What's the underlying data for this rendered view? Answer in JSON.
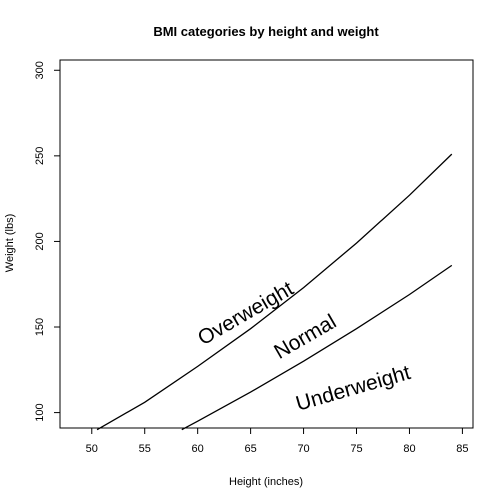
{
  "chart_data": {
    "type": "line",
    "title": "BMI categories by height and weight",
    "xlabel": "Height (inches)",
    "ylabel": "Weight (lbs)",
    "xlim": [
      47,
      86
    ],
    "ylim": [
      91,
      306
    ],
    "xticks": [
      50,
      55,
      60,
      65,
      70,
      75,
      80,
      85
    ],
    "yticks": [
      100,
      150,
      200,
      250,
      300
    ],
    "grid": false,
    "series": [
      {
        "x": [
          50.5,
          55,
          60,
          65,
          70,
          75,
          80,
          84
        ],
        "y": [
          90,
          106,
          127,
          149,
          173,
          199,
          227,
          251
        ]
      },
      {
        "x": [
          58.5,
          60,
          65,
          70,
          75,
          80,
          84
        ],
        "y": [
          90,
          95,
          112,
          130,
          149,
          169,
          186
        ]
      }
    ],
    "annotations": [
      {
        "text": "Overweight",
        "x": 60.5,
        "y": 139,
        "angle": -30
      },
      {
        "text": "Normal",
        "x": 67.7,
        "y": 131,
        "angle": -30
      },
      {
        "text": "Underweight",
        "x": 69.5,
        "y": 101,
        "angle": -16
      }
    ]
  }
}
